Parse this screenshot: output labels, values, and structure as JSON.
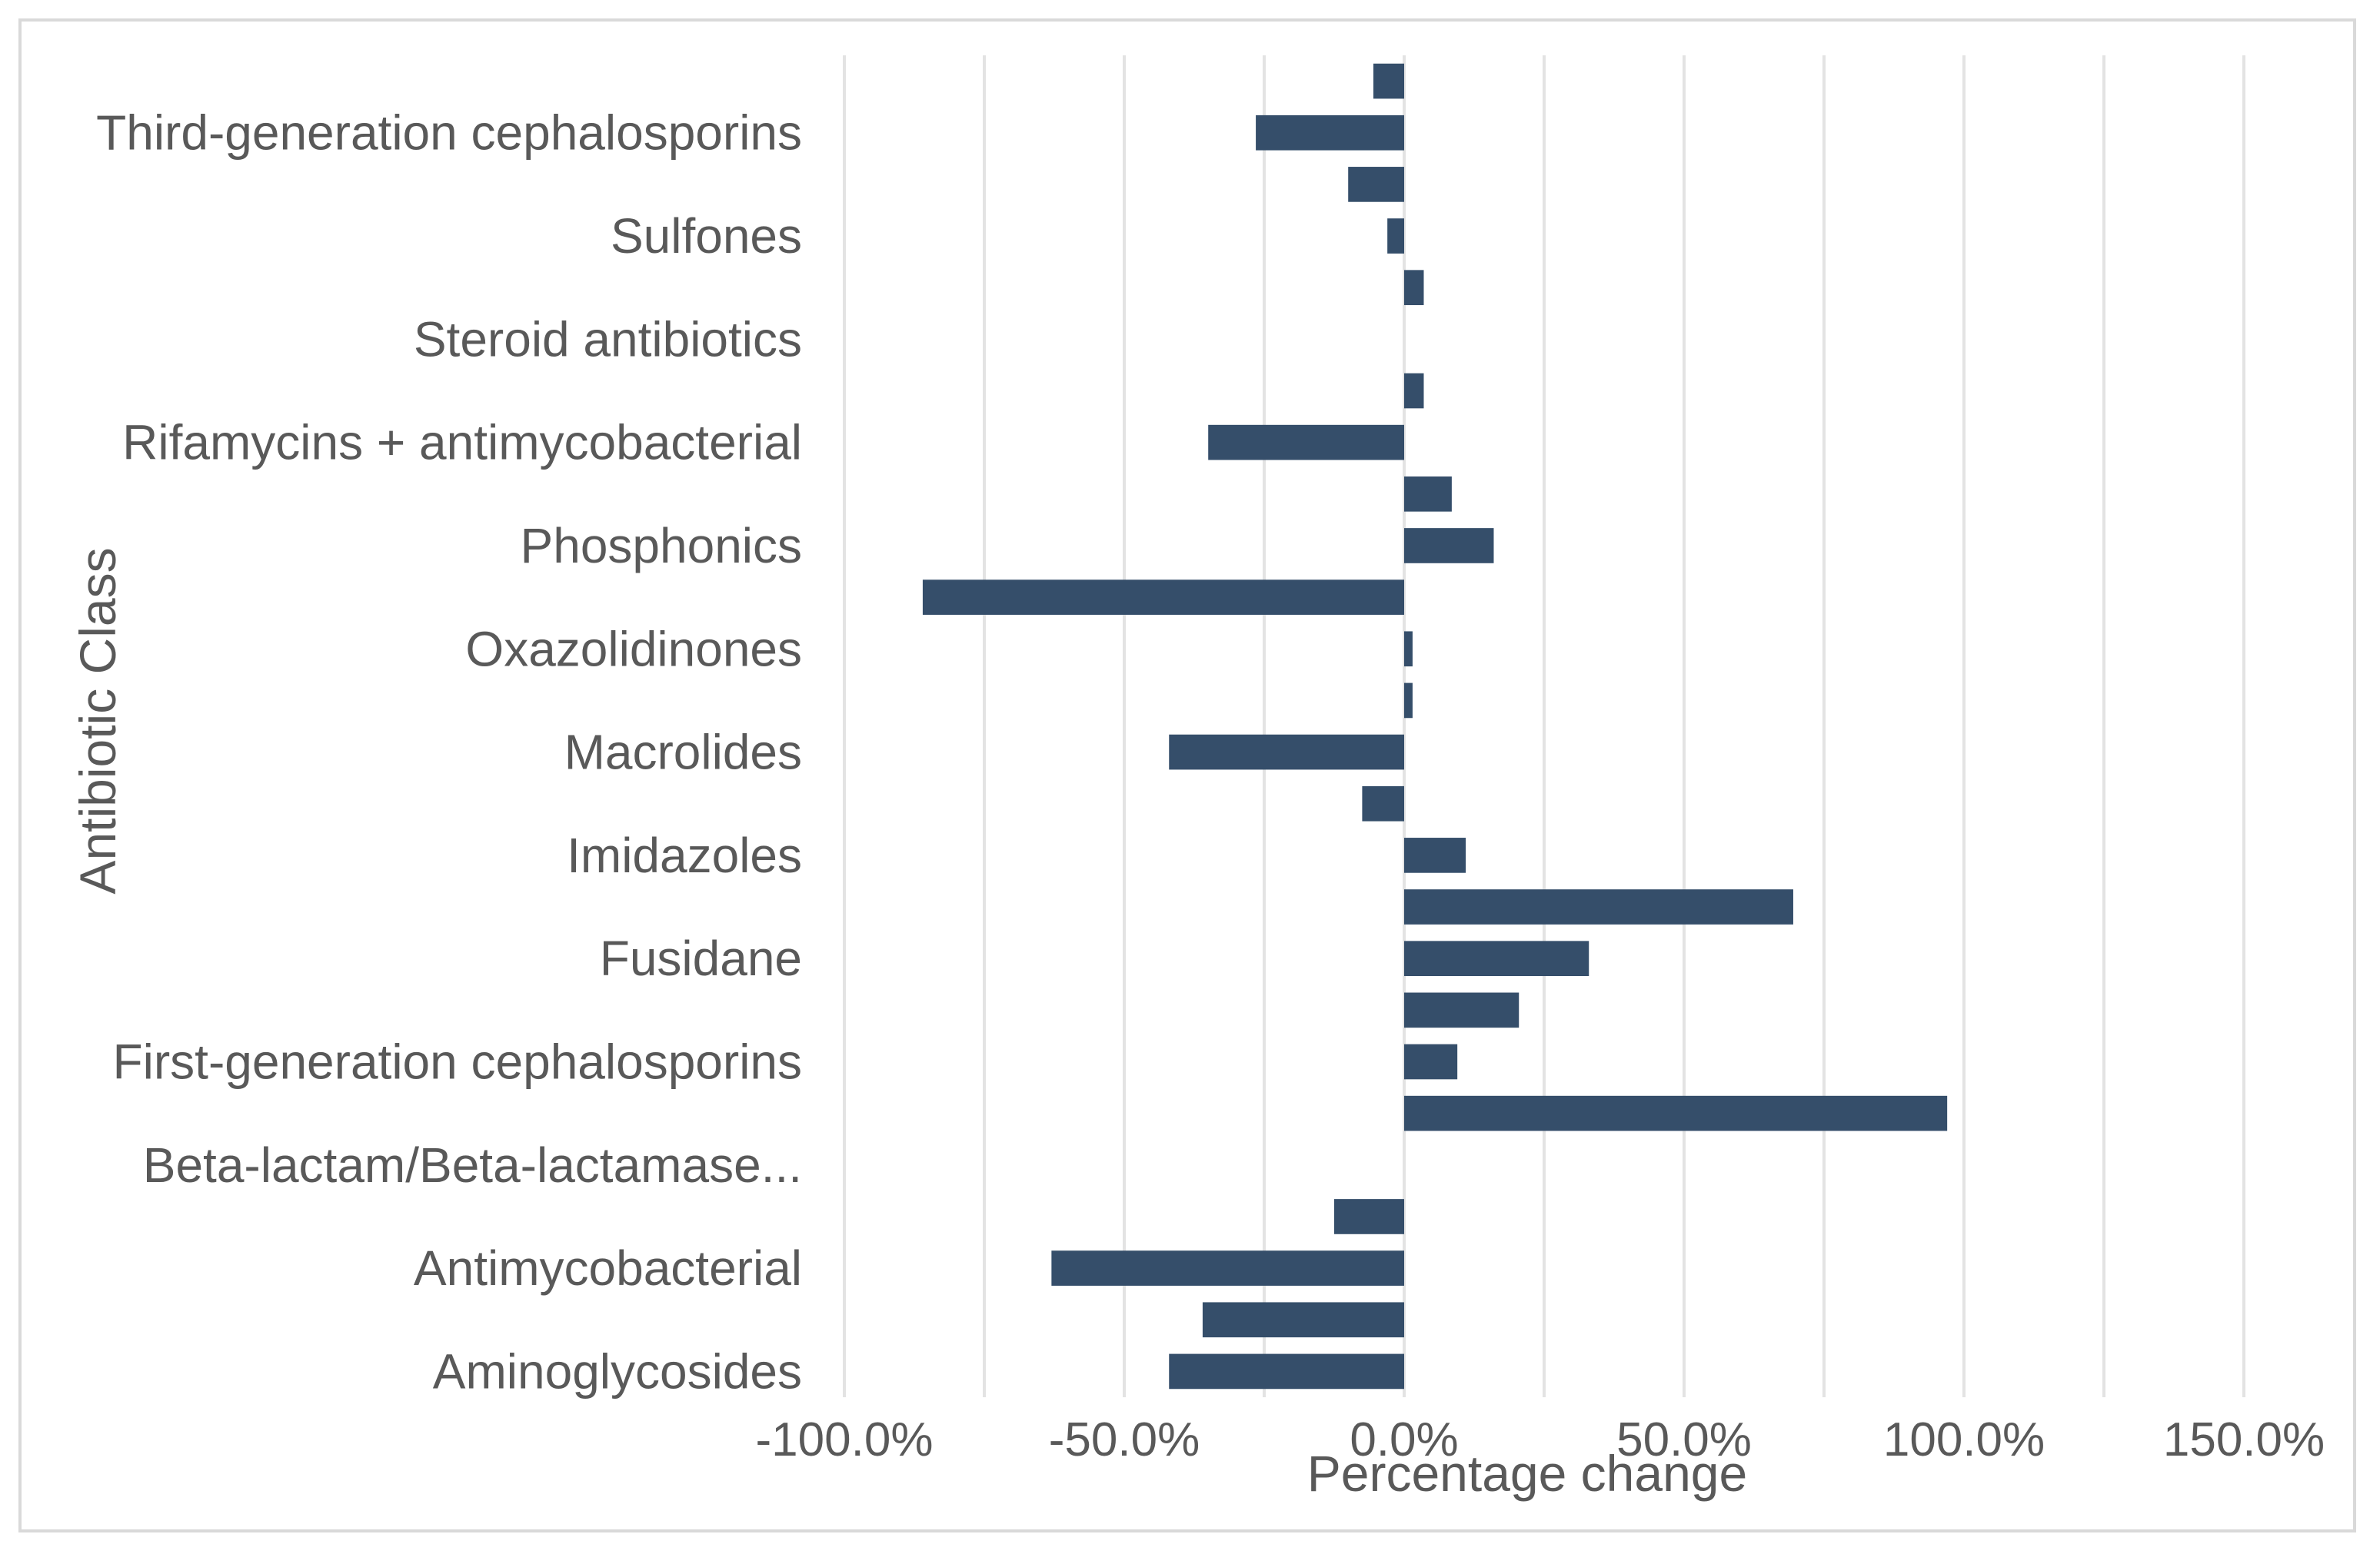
{
  "chart_data": {
    "type": "bar",
    "orientation": "horizontal",
    "title": "",
    "xlabel": "Percentage change",
    "ylabel": "Antibiotic Class",
    "xlim": [
      -100,
      150
    ],
    "xticks": [
      -100,
      -75,
      -50,
      -25,
      0,
      25,
      50,
      75,
      100,
      125,
      150
    ],
    "tick_labels": [
      "-100.0%",
      "-50.0%",
      "0.0%",
      "50.0%",
      "100.0%",
      "150.0%"
    ],
    "tick_label_values": [
      -100,
      -50,
      0,
      50,
      100,
      150
    ],
    "category_labels": [
      "Third-generation cephalosporins",
      "Sulfones",
      "Steroid antibiotics",
      "Rifamycins + antimycobacterial",
      "Phosphonics",
      "Oxazolidinones",
      "Macrolides",
      "Imidazoles",
      "Fusidane",
      "First-generation cephalosporins",
      "Beta-lactam/Beta-lactamase...",
      "Antimycobacterial",
      "Aminoglycosides"
    ],
    "category_label_rows": [
      1,
      3,
      5,
      7,
      9,
      11,
      13,
      15,
      17,
      19,
      21,
      23,
      25
    ],
    "total_rows": 26,
    "values": [
      -5.5,
      -26.5,
      -10,
      -3,
      3.5,
      3.5,
      -35,
      8.5,
      16,
      -86,
      1.5,
      1.5,
      -42,
      -7.5,
      11,
      69.5,
      33,
      20.5,
      9.5,
      97,
      -12.5,
      -63,
      -36,
      -42
    ],
    "value_rows": [
      0,
      1,
      2,
      3,
      4,
      6,
      7,
      8,
      9,
      10,
      11,
      12,
      13,
      14,
      15,
      16,
      17,
      18,
      19,
      20,
      22,
      23,
      24,
      25
    ],
    "bar_color": "#354e6a",
    "grid": true,
    "legend": "none"
  }
}
